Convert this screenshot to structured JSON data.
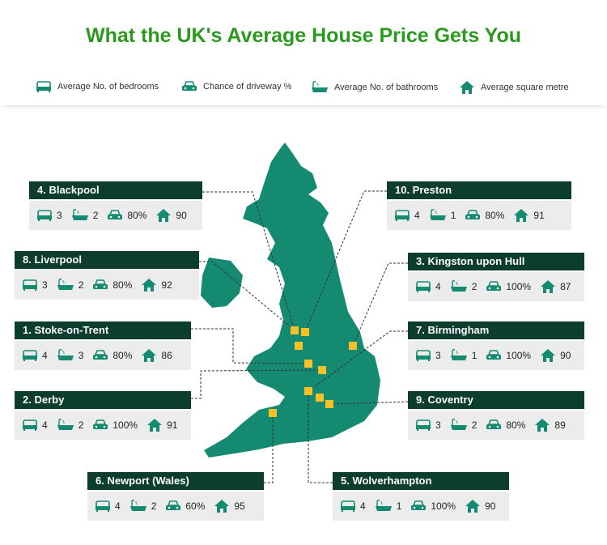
{
  "title": "What the UK's Average House Price Gets You",
  "legend": [
    {
      "label": "Average No. of bedrooms"
    },
    {
      "label": "Chance of driveway %"
    },
    {
      "label": "Average No. of bathrooms"
    },
    {
      "label": "Average square metre"
    }
  ],
  "cities": [
    {
      "name": "4. Blackpool",
      "bedrooms": "3",
      "bathrooms": "2",
      "driveway": "80%",
      "square_metre": "90"
    },
    {
      "name": "8. Liverpool",
      "bedrooms": "3",
      "bathrooms": "2",
      "driveway": "80%",
      "square_metre": "92"
    },
    {
      "name": "1. Stoke-on-Trent",
      "bedrooms": "4",
      "bathrooms": "3",
      "driveway": "80%",
      "square_metre": "86"
    },
    {
      "name": "2. Derby",
      "bedrooms": "4",
      "bathrooms": "2",
      "driveway": "100%",
      "square_metre": "91"
    },
    {
      "name": "6. Newport (Wales)",
      "bedrooms": "4",
      "bathrooms": "2",
      "driveway": "60%",
      "square_metre": "95"
    },
    {
      "name": "10. Preston",
      "bedrooms": "4",
      "bathrooms": "1",
      "driveway": "80%",
      "square_metre": "91"
    },
    {
      "name": "3. Kingston upon Hull",
      "bedrooms": "4",
      "bathrooms": "2",
      "driveway": "100%",
      "square_metre": "87"
    },
    {
      "name": "7. Birmingham",
      "bedrooms": "3",
      "bathrooms": "1",
      "driveway": "100%",
      "square_metre": "90"
    },
    {
      "name": "9. Coventry",
      "bedrooms": "3",
      "bathrooms": "2",
      "driveway": "80%",
      "square_metre": "89"
    },
    {
      "name": "5. Wolverhampton",
      "bedrooms": "4",
      "bathrooms": "1",
      "driveway": "100%",
      "square_metre": "90"
    }
  ]
}
